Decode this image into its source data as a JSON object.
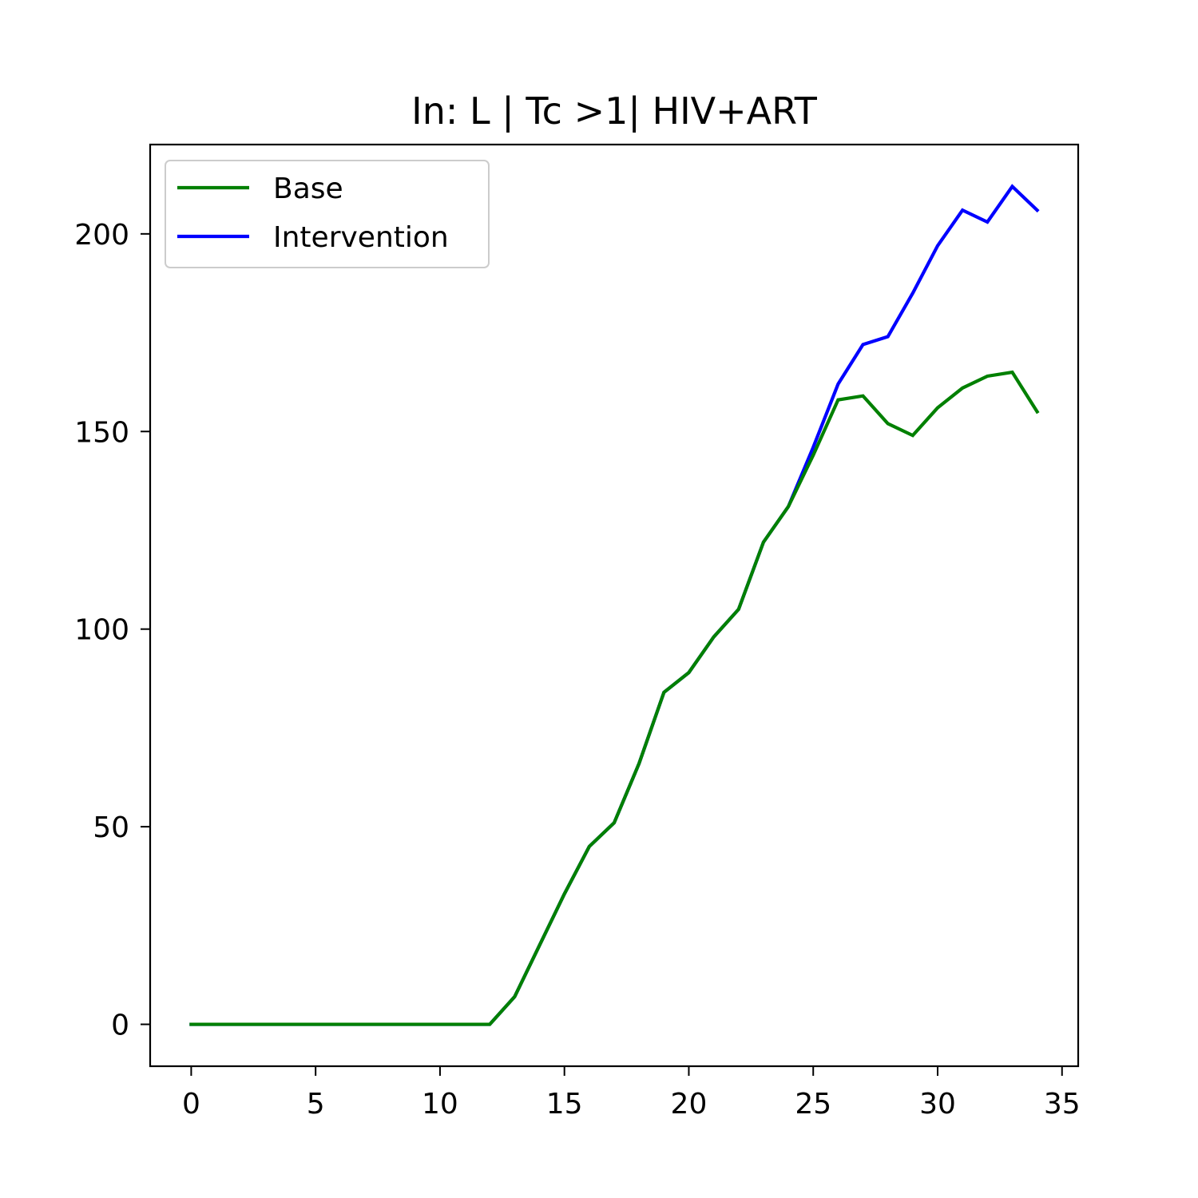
{
  "chart_data": {
    "type": "line",
    "title": "In: L | Tc >1| HIV+ART",
    "xlabel": "",
    "ylabel": "",
    "xlim": [
      -1.65,
      35.65
    ],
    "ylim": [
      -10.6,
      222.6
    ],
    "xticks": [
      0,
      5,
      10,
      15,
      20,
      25,
      30,
      35
    ],
    "yticks": [
      0,
      50,
      100,
      150,
      200
    ],
    "grid": false,
    "legend_position": "top-left",
    "series": [
      {
        "name": "Base",
        "color": "#008000",
        "x": [
          0,
          1,
          2,
          3,
          4,
          5,
          6,
          7,
          8,
          9,
          10,
          11,
          12,
          13,
          14,
          15,
          16,
          17,
          18,
          19,
          20,
          21,
          22,
          23,
          24,
          25,
          26,
          27,
          28,
          29,
          30,
          31,
          32,
          33,
          34
        ],
        "values": [
          0,
          0,
          0,
          0,
          0,
          0,
          0,
          0,
          0,
          0,
          0,
          0,
          0,
          7,
          20,
          33,
          45,
          51,
          66,
          84,
          89,
          98,
          105,
          122,
          131,
          144,
          158,
          159,
          152,
          149,
          156,
          161,
          164,
          165,
          155
        ]
      },
      {
        "name": "Intervention",
        "color": "#0000ff",
        "x": [
          0,
          1,
          2,
          3,
          4,
          5,
          6,
          7,
          8,
          9,
          10,
          11,
          12,
          13,
          14,
          15,
          16,
          17,
          18,
          19,
          20,
          21,
          22,
          23,
          24,
          25,
          26,
          27,
          28,
          29,
          30,
          31,
          32,
          33,
          34
        ],
        "values": [
          0,
          0,
          0,
          0,
          0,
          0,
          0,
          0,
          0,
          0,
          0,
          0,
          0,
          7,
          20,
          33,
          45,
          51,
          66,
          84,
          89,
          98,
          105,
          122,
          131,
          146,
          162,
          172,
          174,
          185,
          197,
          206,
          203,
          212,
          206
        ]
      }
    ]
  }
}
